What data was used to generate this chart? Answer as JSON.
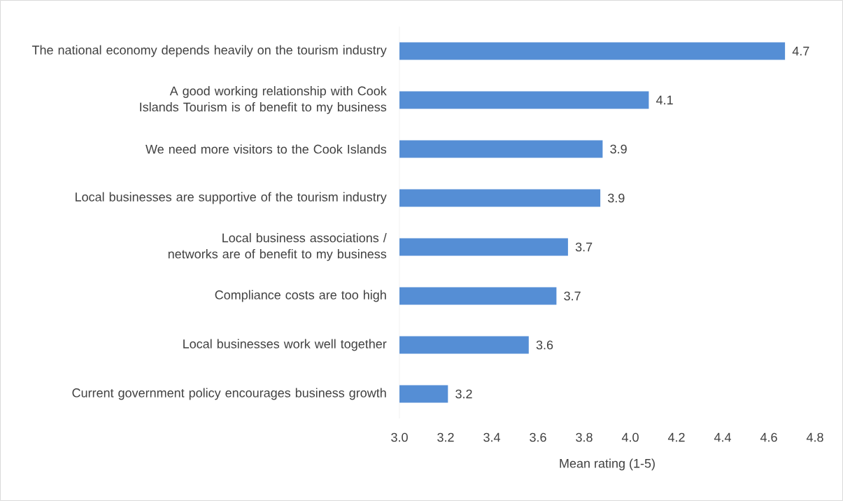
{
  "chart_data": {
    "type": "bar",
    "orientation": "horizontal",
    "xlabel": "Mean rating (1-5)",
    "categories": [
      "The national economy depends heavily on the tourism industry",
      "A good working relationship with Cook Islands Tourism is of benefit to my business",
      "We need more visitors to the Cook Islands",
      "Local businesses are supportive of the tourism industry",
      "Local business associations / networks are of benefit to my business",
      "Compliance costs are too high",
      "Local businesses work well together",
      "Current government policy encourages business growth"
    ],
    "values": [
      4.67,
      4.08,
      3.88,
      3.87,
      3.73,
      3.68,
      3.56,
      3.21
    ],
    "value_labels": [
      "4.7",
      "4.1",
      "3.9",
      "3.9",
      "3.7",
      "3.7",
      "3.6",
      "3.2"
    ],
    "color": "#558ed5",
    "xlim": [
      3.0,
      4.8
    ],
    "xticks": [
      {
        "value": 3,
        "label": "3.0"
      },
      3.2,
      3.4,
      3.6,
      3.8,
      {
        "value": 4,
        "label": "4.0"
      },
      4.2,
      4.4,
      4.6,
      4.8
    ]
  }
}
